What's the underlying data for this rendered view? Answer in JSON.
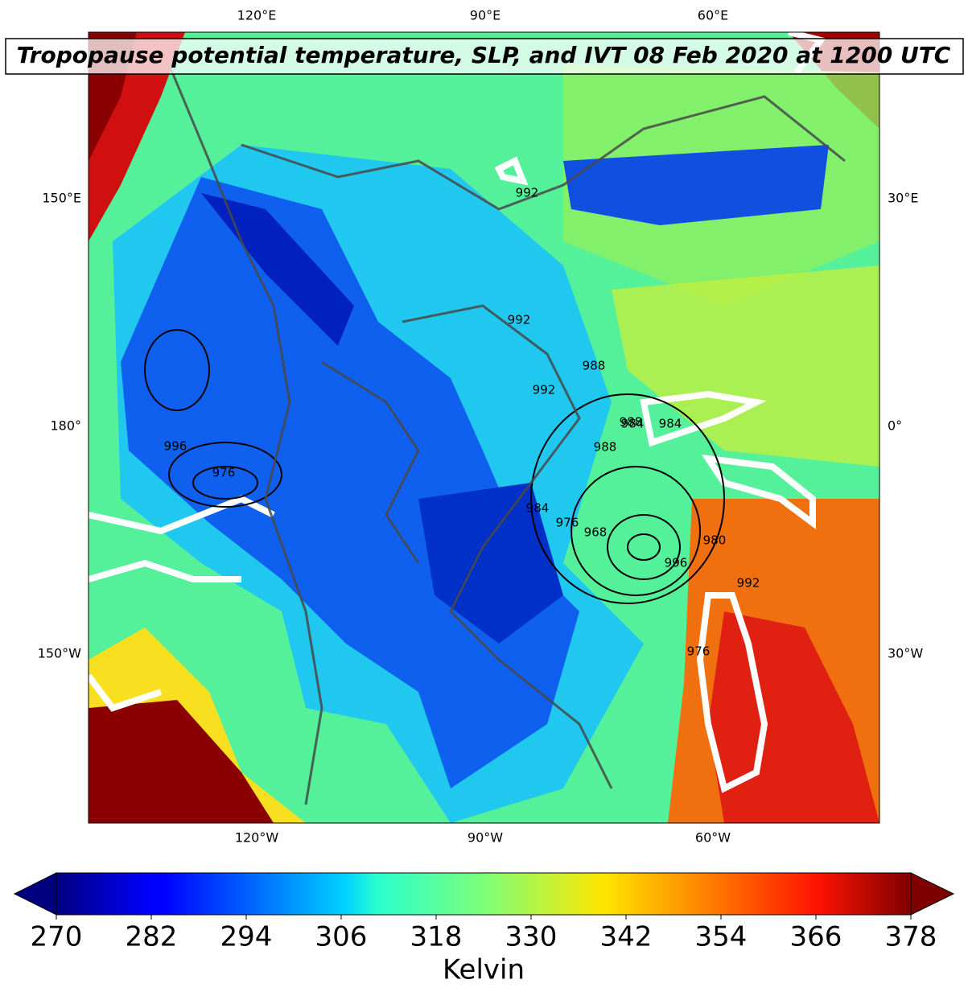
{
  "title": "Tropopause potential temperature, SLP, and IVT 08 Feb 2020 at 1200 UTC",
  "map": {
    "lon_labels_top": [
      "120°E",
      "90°E",
      "60°E"
    ],
    "lon_labels_bottom": [
      "120°W",
      "90°W",
      "60°W"
    ],
    "lon_labels_left": [
      "150°E",
      "180°",
      "150°W"
    ],
    "lon_labels_right": [
      "30°E",
      "0°",
      "30°W"
    ],
    "slp_contour_labels": [
      "992",
      "992",
      "992",
      "988",
      "988",
      "984",
      "984",
      "988",
      "976",
      "984",
      "976",
      "968",
      "980",
      "996",
      "992",
      "976",
      "996"
    ]
  },
  "colorbar": {
    "label": "Kelvin",
    "lim": [
      270,
      378
    ],
    "ticks": [
      270,
      282,
      294,
      306,
      318,
      330,
      342,
      354,
      366,
      378
    ],
    "cmap": "jet",
    "extend": "both"
  }
}
